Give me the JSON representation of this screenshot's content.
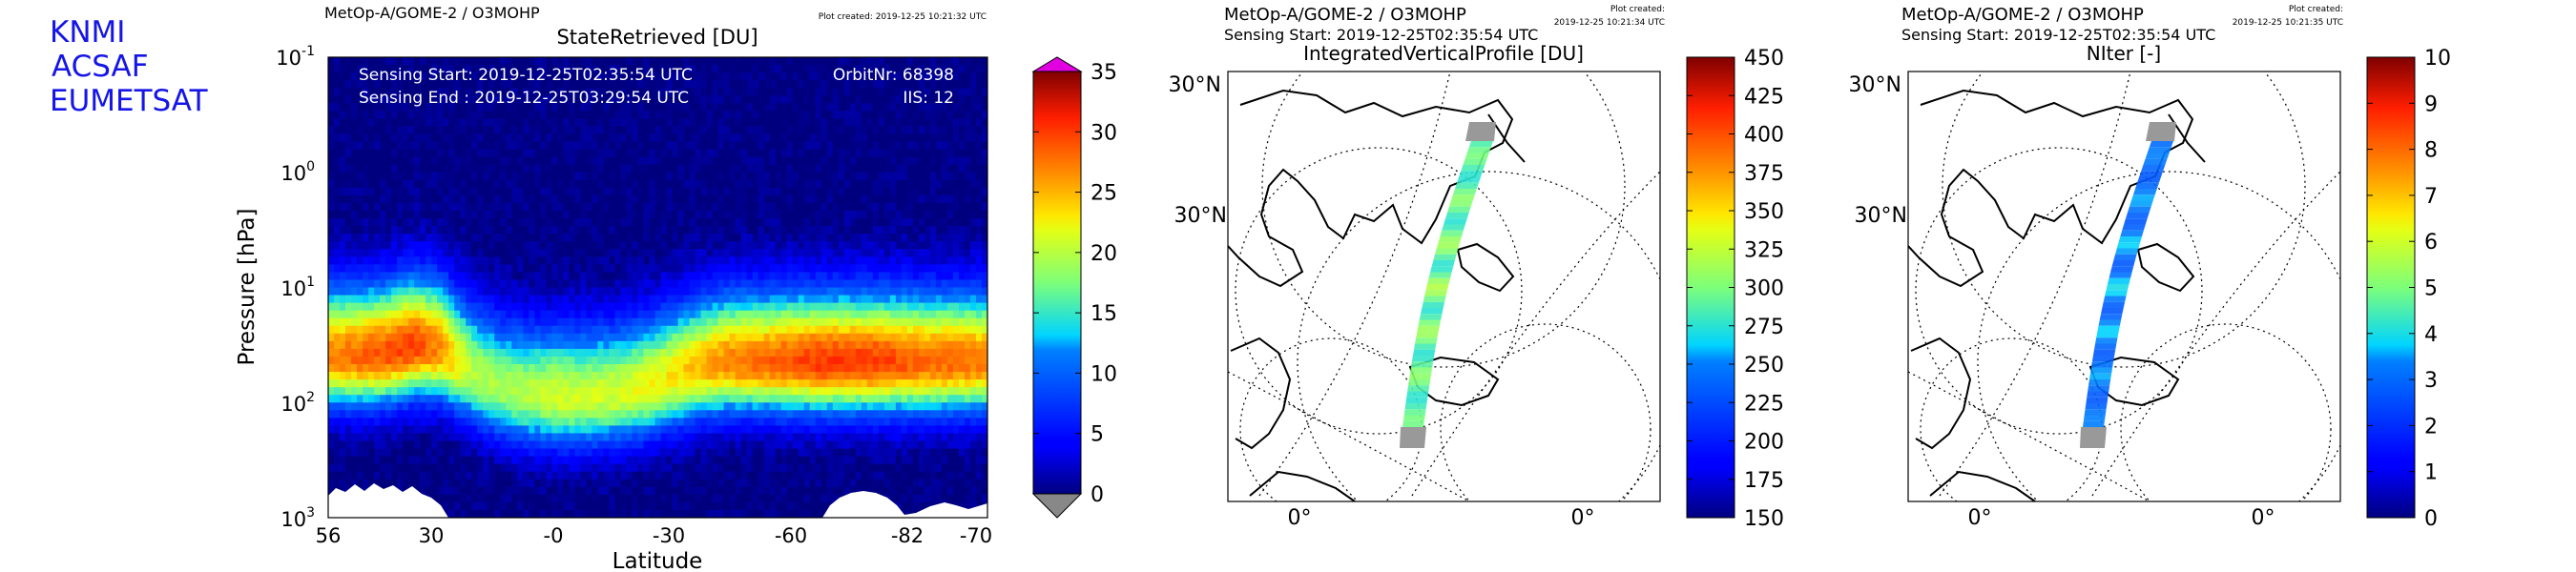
{
  "branding": {
    "lines": [
      "KNMI",
      "ACSAF",
      "EUMETSAT"
    ],
    "color": "#1515e8"
  },
  "panels": {
    "profile": {
      "header": "MetOp-A/GOME-2 / O3MOHP",
      "plot_created": "Plot created: 2019-12-25 10:21:32 UTC",
      "title": "StateRetrieved [DU]",
      "annotation_left": [
        "Sensing Start: 2019-12-25T02:35:54 UTC",
        "Sensing End  : 2019-12-25T03:29:54 UTC"
      ],
      "annotation_right": [
        "OrbitNr: 68398",
        "IIS: 12"
      ]
    },
    "map_ivp": {
      "header": "MetOp-A/GOME-2 / O3MOHP",
      "sensing": "Sensing Start: 2019-12-25T02:35:54 UTC",
      "plot_created": [
        "Plot created:",
        "2019-12-25 10:21:34 UTC"
      ],
      "title": "IntegratedVerticalProfile [DU]",
      "lat_labels": [
        "30°N",
        "30°N"
      ],
      "lon_labels": [
        "0°",
        "0°"
      ]
    },
    "map_niter": {
      "header": "MetOp-A/GOME-2 / O3MOHP",
      "sensing": "Sensing Start: 2019-12-25T02:35:54 UTC",
      "plot_created": [
        "Plot created:",
        "2019-12-25 10:21:35 UTC"
      ],
      "title": "NIter [-]",
      "lat_labels": [
        "30°N",
        "30°N"
      ],
      "lon_labels": [
        "0°",
        "0°"
      ]
    }
  },
  "chart_data": [
    {
      "type": "heatmap",
      "title": "StateRetrieved [DU]",
      "xlabel": "Latitude",
      "ylabel": "Pressure [hPa]",
      "x_ticks": [
        "56",
        "30",
        "-0",
        "-30",
        "-60",
        "-82",
        "-70"
      ],
      "y_scale": "log",
      "y_inverted": true,
      "y_range": [
        0.1,
        1000
      ],
      "y_ticks": [
        {
          "base": "10",
          "exp": "-1"
        },
        {
          "base": "10",
          "exp": "0"
        },
        {
          "base": "10",
          "exp": "1"
        },
        {
          "base": "10",
          "exp": "2"
        },
        {
          "base": "10",
          "exp": "3"
        }
      ],
      "latitude_profile": [
        56,
        50,
        42,
        34,
        26,
        18,
        10,
        2,
        -6,
        -14,
        -22,
        -30,
        -38,
        -46,
        -54,
        -62,
        -68,
        -74,
        -79,
        -82,
        -80,
        -76,
        -72,
        -70
      ],
      "peak_pressure_hpa": [
        40,
        40,
        38,
        32,
        35,
        55,
        75,
        85,
        90,
        90,
        85,
        75,
        60,
        50,
        45,
        45,
        45,
        45,
        45,
        45,
        45,
        45,
        45,
        45
      ],
      "peak_value_du": [
        27,
        28,
        29,
        30,
        26,
        20,
        19,
        20,
        21,
        21,
        21,
        22,
        23,
        25,
        27,
        28,
        29,
        30,
        30,
        30,
        29,
        28,
        28,
        27
      ],
      "colorbar": {
        "min": 0,
        "max": 35,
        "ticks": [
          "0",
          "5",
          "10",
          "15",
          "20",
          "25",
          "30",
          "35"
        ],
        "over_color": "#e000e0",
        "under_color": "#888888"
      }
    },
    {
      "type": "heatmap",
      "title": "IntegratedVerticalProfile [DU]",
      "description_values": {
        "swath_value_range_du": [
          250,
          320
        ]
      },
      "colorbar": {
        "min": 150,
        "max": 450,
        "ticks": [
          "150",
          "175",
          "200",
          "225",
          "250",
          "275",
          "300",
          "325",
          "350",
          "375",
          "400",
          "425",
          "450"
        ]
      }
    },
    {
      "type": "heatmap",
      "title": "NIter [-]",
      "description_values": {
        "swath_value_range": [
          2,
          4
        ]
      },
      "colorbar": {
        "min": 0,
        "max": 10,
        "ticks": [
          "0",
          "1",
          "2",
          "3",
          "4",
          "5",
          "6",
          "7",
          "8",
          "9",
          "10"
        ]
      }
    }
  ]
}
